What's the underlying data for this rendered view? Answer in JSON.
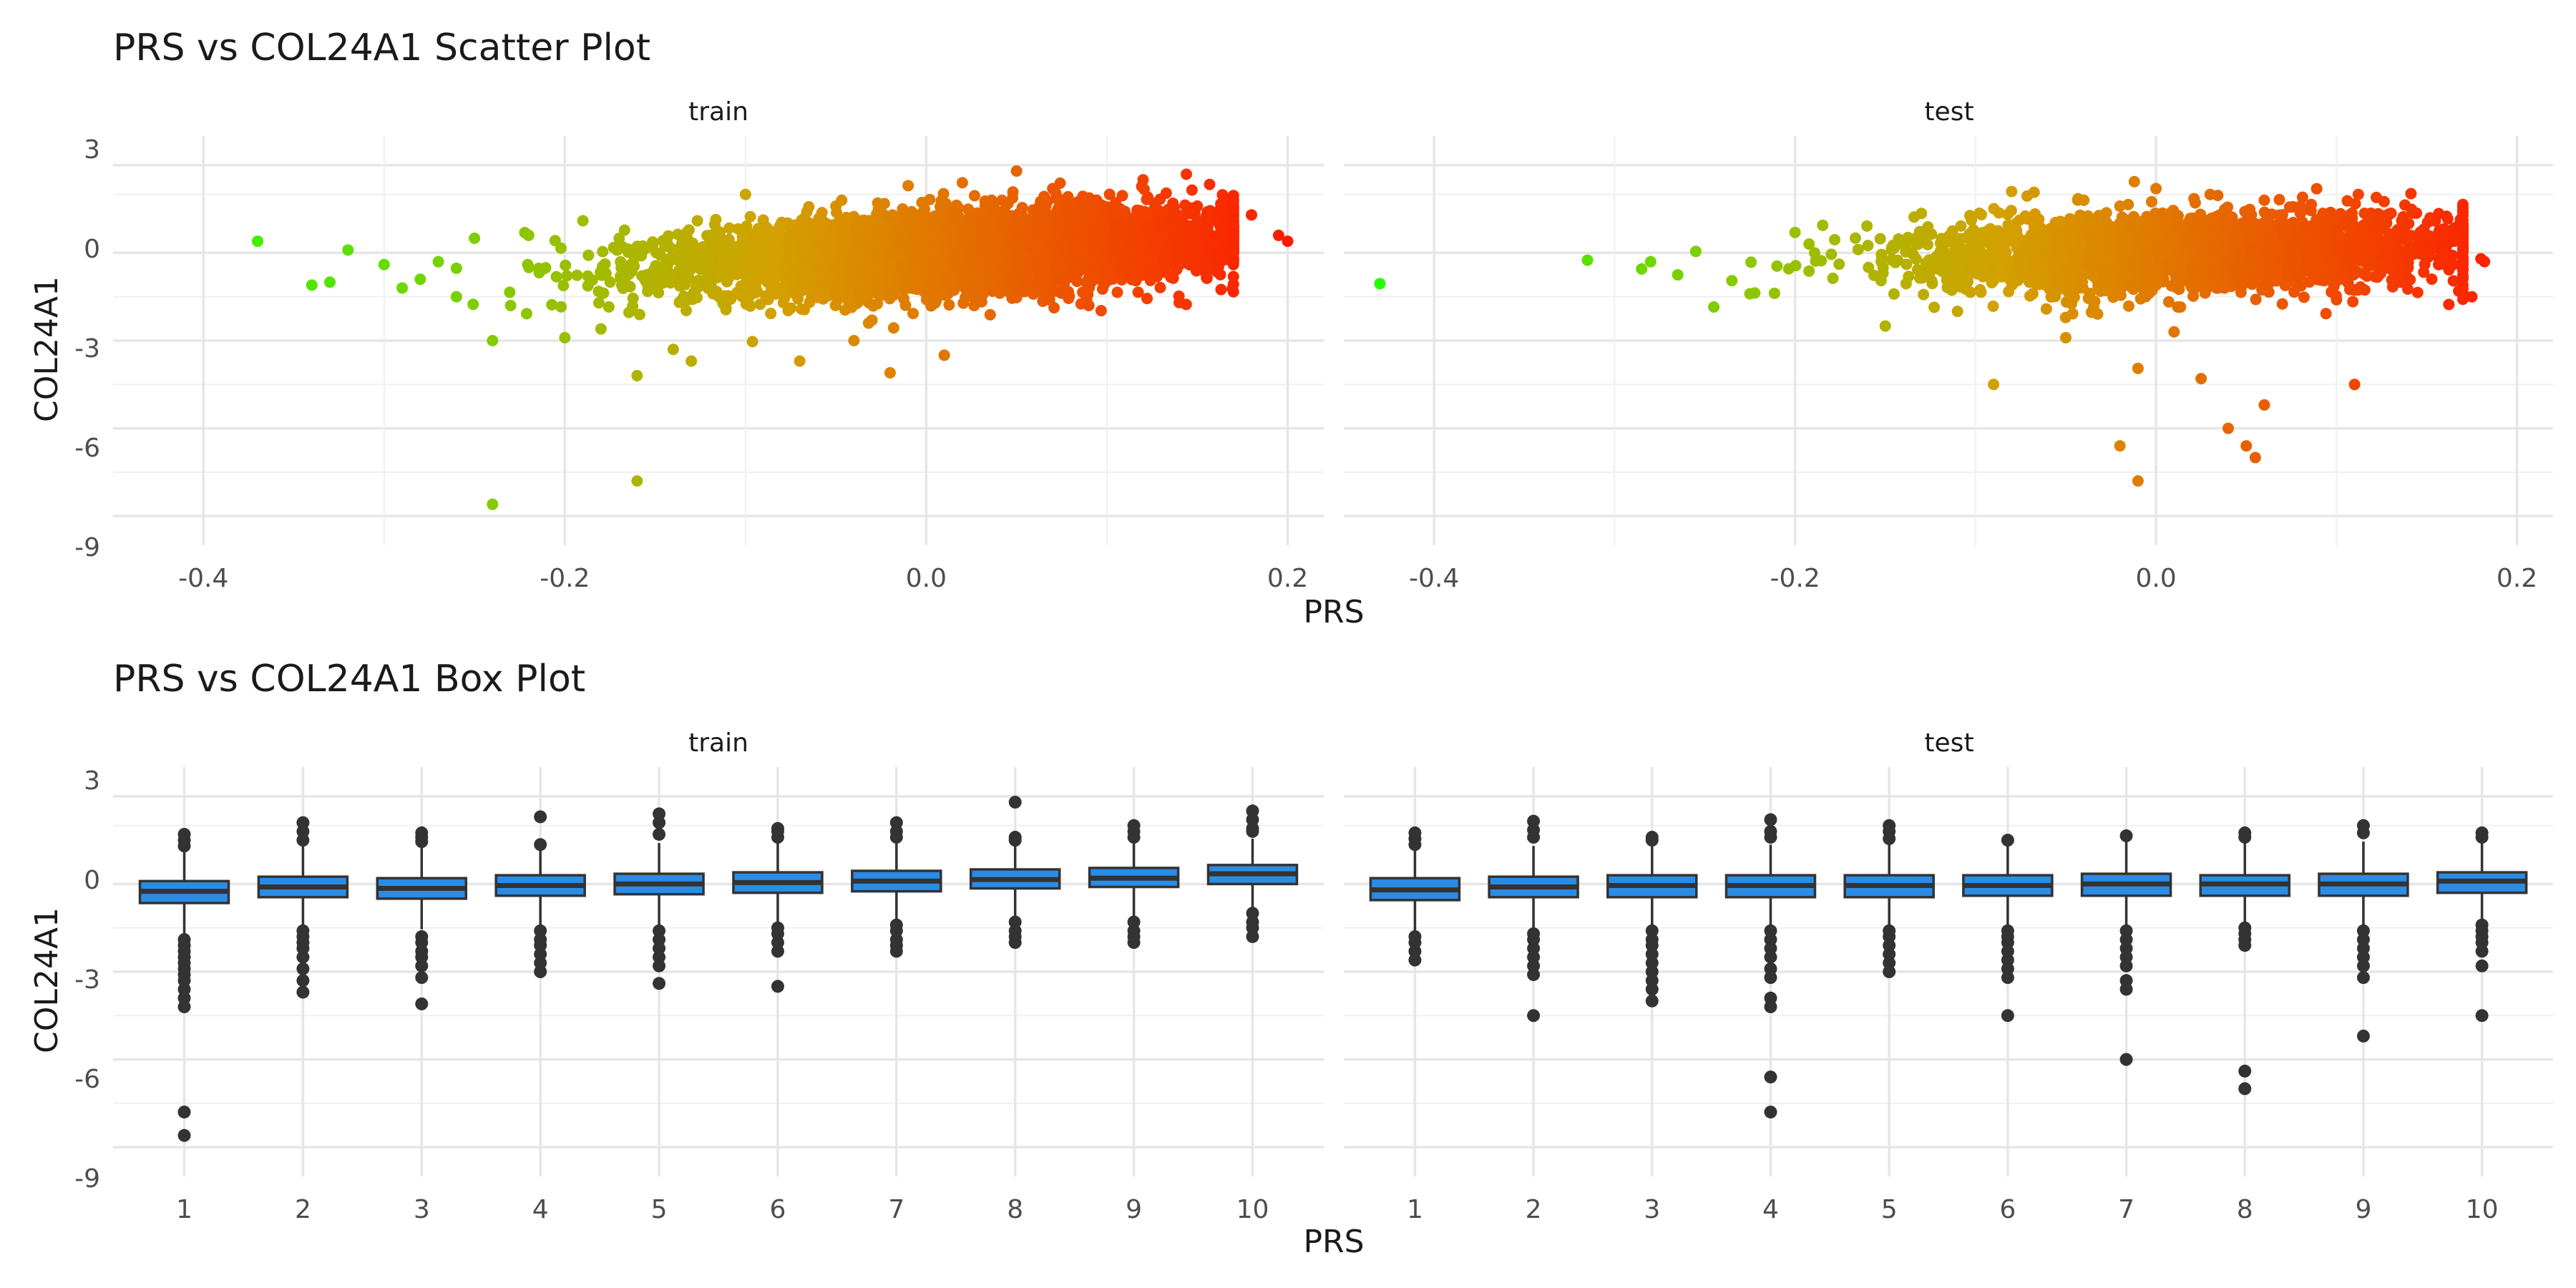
{
  "chart_data": [
    {
      "type": "scatter",
      "title": "PRS vs COL24A1 Scatter Plot",
      "xlabel": "PRS",
      "ylabel": "COL24A1",
      "xlim": [
        -0.45,
        0.22
      ],
      "ylim": [
        -9,
        3
      ],
      "x_ticks": [
        "-0.4",
        "-0.2",
        "0.0",
        "0.2"
      ],
      "y_ticks": [
        "3",
        "0",
        "-3",
        "-6",
        "-9"
      ],
      "grid": true,
      "color_scale": {
        "low": "#22ff00",
        "mid": "#d4a000",
        "high": "#ff1a00"
      },
      "panels": [
        {
          "name": "train",
          "points": [
            [
              -0.37,
              0.4
            ],
            [
              -0.34,
              -1.1
            ],
            [
              -0.33,
              -1.0
            ],
            [
              -0.32,
              0.1
            ],
            [
              -0.3,
              -0.4
            ],
            [
              -0.29,
              -1.2
            ],
            [
              -0.28,
              -0.9
            ],
            [
              -0.27,
              -0.3
            ],
            [
              -0.26,
              -1.5
            ],
            [
              -0.25,
              0.5
            ],
            [
              -0.24,
              -3.0
            ],
            [
              -0.24,
              -8.6
            ],
            [
              -0.23,
              -1.8
            ],
            [
              -0.22,
              0.6
            ],
            [
              -0.2,
              -2.9
            ],
            [
              -0.19,
              1.1
            ],
            [
              -0.18,
              -2.6
            ],
            [
              -0.16,
              -4.2
            ],
            [
              -0.16,
              -7.8
            ],
            [
              -0.14,
              -3.3
            ],
            [
              -0.13,
              -3.7
            ],
            [
              -0.1,
              2.0
            ],
            [
              -0.07,
              -3.7
            ],
            [
              -0.05,
              1.6
            ],
            [
              -0.04,
              -3.0
            ],
            [
              -0.03,
              -2.3
            ],
            [
              -0.02,
              -4.1
            ],
            [
              -0.01,
              2.3
            ],
            [
              0.01,
              -3.5
            ],
            [
              0.02,
              2.4
            ],
            [
              0.05,
              2.8
            ],
            [
              0.07,
              2.2
            ],
            [
              0.09,
              -1.8
            ],
            [
              0.12,
              2.5
            ],
            [
              0.14,
              -1.7
            ],
            [
              0.15,
              1.6
            ],
            [
              0.17,
              -0.4
            ],
            [
              0.18,
              1.3
            ],
            [
              0.195,
              0.6
            ],
            [
              0.2,
              0.4
            ]
          ]
        },
        {
          "name": "test",
          "points": [
            [
              -0.43,
              -1.05
            ],
            [
              -0.315,
              -0.25
            ],
            [
              -0.285,
              -0.55
            ],
            [
              -0.28,
              -0.3
            ],
            [
              -0.265,
              -0.75
            ],
            [
              -0.255,
              0.05
            ],
            [
              -0.245,
              -1.85
            ],
            [
              -0.235,
              -0.95
            ],
            [
              -0.225,
              -1.4
            ],
            [
              -0.21,
              -0.45
            ],
            [
              -0.2,
              0.7
            ],
            [
              -0.15,
              -2.5
            ],
            [
              -0.13,
              1.35
            ],
            [
              -0.11,
              -2.0
            ],
            [
              -0.09,
              -4.5
            ],
            [
              -0.08,
              2.1
            ],
            [
              -0.05,
              -2.9
            ],
            [
              -0.04,
              1.8
            ],
            [
              -0.02,
              1.6
            ],
            [
              -0.02,
              -6.6
            ],
            [
              -0.01,
              -7.8
            ],
            [
              -0.01,
              -3.95
            ],
            [
              0.0,
              2.2
            ],
            [
              0.01,
              -2.7
            ],
            [
              0.025,
              -4.3
            ],
            [
              0.03,
              2.0
            ],
            [
              0.04,
              -6.0
            ],
            [
              0.05,
              -6.6
            ],
            [
              0.055,
              -7.0
            ],
            [
              0.06,
              -5.2
            ],
            [
              0.06,
              1.8
            ],
            [
              0.08,
              1.6
            ],
            [
              0.1,
              -1.6
            ],
            [
              0.11,
              -4.5
            ],
            [
              0.14,
              1.0
            ],
            [
              0.17,
              0.8
            ],
            [
              0.18,
              -0.2
            ],
            [
              0.182,
              -0.3
            ],
            [
              0.175,
              -1.5
            ],
            [
              0.165,
              0.4
            ]
          ]
        }
      ]
    },
    {
      "type": "box",
      "title": "PRS vs COL24A1 Box Plot",
      "xlabel": "PRS",
      "ylabel": "COL24A1",
      "categories": [
        "1",
        "2",
        "3",
        "4",
        "5",
        "6",
        "7",
        "8",
        "9",
        "10"
      ],
      "ylim": [
        -9,
        3
      ],
      "y_ticks": [
        "3",
        "0",
        "-3",
        "-6",
        "-9"
      ],
      "box_fill": "#2b8ce6",
      "box_line": "#333333",
      "panels": [
        {
          "name": "train",
          "boxes": [
            {
              "q1": -0.65,
              "median": -0.25,
              "q3": 0.1,
              "wlo": -1.75,
              "whi": 1.2,
              "outliers": [
                1.7,
                1.5,
                1.3,
                -1.9,
                -2.1,
                -2.3,
                -2.5,
                -2.7,
                -2.9,
                -3.1,
                -3.3,
                -3.6,
                -3.9,
                -4.2,
                -7.8,
                -8.6
              ]
            },
            {
              "q1": -0.45,
              "median": -0.1,
              "q3": 0.25,
              "wlo": -1.4,
              "whi": 1.3,
              "outliers": [
                2.1,
                1.8,
                1.5,
                -1.6,
                -1.8,
                -2.0,
                -2.2,
                -2.5,
                -2.9,
                -3.3,
                -3.7
              ]
            },
            {
              "q1": -0.5,
              "median": -0.15,
              "q3": 0.2,
              "wlo": -1.55,
              "whi": 1.3,
              "outliers": [
                1.75,
                1.6,
                1.45,
                -1.8,
                -2.0,
                -2.3,
                -2.5,
                -2.8,
                -3.2,
                -4.1
              ]
            },
            {
              "q1": -0.4,
              "median": -0.05,
              "q3": 0.3,
              "wlo": -1.45,
              "whi": 1.3,
              "outliers": [
                2.3,
                1.35,
                -1.6,
                -1.9,
                -2.1,
                -2.4,
                -2.7,
                -3.0
              ]
            },
            {
              "q1": -0.35,
              "median": 0.0,
              "q3": 0.35,
              "wlo": -1.4,
              "whi": 1.4,
              "outliers": [
                2.4,
                2.1,
                1.7,
                -1.6,
                -1.9,
                -2.2,
                -2.5,
                -2.8,
                -3.4
              ]
            },
            {
              "q1": -0.3,
              "median": 0.05,
              "q3": 0.4,
              "wlo": -1.35,
              "whi": 1.45,
              "outliers": [
                1.9,
                1.8,
                1.6,
                -1.5,
                -1.7,
                -2.0,
                -2.3,
                -3.5
              ]
            },
            {
              "q1": -0.25,
              "median": 0.1,
              "q3": 0.45,
              "wlo": -1.3,
              "whi": 1.5,
              "outliers": [
                2.1,
                1.8,
                1.6,
                -1.4,
                -1.6,
                -1.9,
                -2.1,
                -2.3
              ]
            },
            {
              "q1": -0.15,
              "median": 0.15,
              "q3": 0.5,
              "wlo": -1.1,
              "whi": 1.45,
              "outliers": [
                2.8,
                1.6,
                1.5,
                -1.3,
                -1.6,
                -1.8,
                -2.0
              ]
            },
            {
              "q1": -0.1,
              "median": 0.2,
              "q3": 0.55,
              "wlo": -1.1,
              "whi": 1.5,
              "outliers": [
                2.0,
                1.8,
                1.6,
                -1.3,
                -1.6,
                -1.8,
                -2.0
              ]
            },
            {
              "q1": 0.0,
              "median": 0.35,
              "q3": 0.65,
              "wlo": -0.8,
              "whi": 1.55,
              "outliers": [
                2.5,
                2.2,
                1.9,
                1.8,
                -1.0,
                -1.3,
                -1.5,
                -1.8
              ]
            }
          ]
        },
        {
          "name": "test",
          "boxes": [
            {
              "q1": -0.55,
              "median": -0.2,
              "q3": 0.2,
              "wlo": -1.6,
              "whi": 1.2,
              "outliers": [
                1.75,
                1.55,
                1.35,
                -1.8,
                -2.0,
                -2.3,
                -2.6
              ]
            },
            {
              "q1": -0.45,
              "median": -0.1,
              "q3": 0.25,
              "wlo": -1.5,
              "whi": 1.3,
              "outliers": [
                2.15,
                1.85,
                1.6,
                -1.7,
                -1.9,
                -2.2,
                -2.5,
                -2.8,
                -3.1,
                -4.5
              ]
            },
            {
              "q1": -0.45,
              "median": -0.05,
              "q3": 0.3,
              "wlo": -1.45,
              "whi": 1.3,
              "outliers": [
                1.6,
                1.5,
                -1.6,
                -1.9,
                -2.1,
                -2.4,
                -2.7,
                -3.0,
                -3.3,
                -3.6,
                -4.0
              ]
            },
            {
              "q1": -0.45,
              "median": -0.05,
              "q3": 0.3,
              "wlo": -1.45,
              "whi": 1.35,
              "outliers": [
                2.2,
                1.8,
                1.6,
                -1.6,
                -1.9,
                -2.2,
                -2.5,
                -2.9,
                -3.2,
                -3.9,
                -4.2,
                -6.6,
                -7.8
              ]
            },
            {
              "q1": -0.45,
              "median": -0.05,
              "q3": 0.3,
              "wlo": -1.45,
              "whi": 1.4,
              "outliers": [
                2.0,
                1.8,
                1.55,
                -1.6,
                -1.8,
                -2.1,
                -2.4,
                -2.7,
                -3.0
              ]
            },
            {
              "q1": -0.4,
              "median": -0.05,
              "q3": 0.3,
              "wlo": -1.45,
              "whi": 1.4,
              "outliers": [
                1.5,
                -1.6,
                -1.8,
                -2.0,
                -2.3,
                -2.6,
                -2.9,
                -3.2,
                -4.5
              ]
            },
            {
              "q1": -0.4,
              "median": 0.0,
              "q3": 0.35,
              "wlo": -1.45,
              "whi": 1.45,
              "outliers": [
                1.65,
                -1.6,
                -1.9,
                -2.2,
                -2.5,
                -2.8,
                -3.3,
                -3.6,
                -6.0
              ]
            },
            {
              "q1": -0.4,
              "median": 0.0,
              "q3": 0.3,
              "wlo": -1.4,
              "whi": 1.4,
              "outliers": [
                1.75,
                1.6,
                -1.5,
                -1.7,
                -1.9,
                -2.1,
                -6.4,
                -7.0
              ]
            },
            {
              "q1": -0.4,
              "median": 0.0,
              "q3": 0.35,
              "wlo": -1.45,
              "whi": 1.45,
              "outliers": [
                2.0,
                1.75,
                -1.6,
                -1.9,
                -2.2,
                -2.5,
                -2.8,
                -3.2,
                -5.2
              ]
            },
            {
              "q1": -0.3,
              "median": 0.1,
              "q3": 0.4,
              "wlo": -1.3,
              "whi": 1.45,
              "outliers": [
                1.75,
                1.6,
                -1.4,
                -1.6,
                -1.8,
                -2.0,
                -2.3,
                -2.8,
                -4.5
              ]
            }
          ]
        }
      ]
    }
  ]
}
